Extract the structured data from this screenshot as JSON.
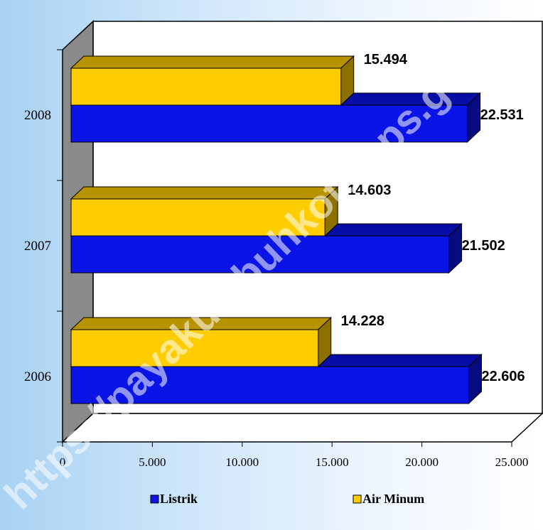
{
  "chart_data": {
    "type": "bar",
    "orientation": "horizontal",
    "three_d": true,
    "categories": [
      "2008",
      "2007",
      "2006"
    ],
    "series": [
      {
        "name": "Air Minum",
        "color": "#ffcc00",
        "values": [
          15494,
          14603,
          14228
        ],
        "labels": [
          "15.494",
          "14.603",
          "14.228"
        ]
      },
      {
        "name": "Listrik",
        "color": "#0a14e6",
        "values": [
          22531,
          21502,
          22606
        ],
        "labels": [
          "22.531",
          "21.502",
          "22.606"
        ]
      }
    ],
    "xlim": [
      0,
      25000
    ],
    "xticks": [
      0,
      5000,
      10000,
      15000,
      20000,
      25000
    ],
    "xtick_labels": [
      "0",
      "5.000",
      "10.000",
      "15.000",
      "20.000",
      "25.000"
    ],
    "legend": [
      "Listrik",
      "Air Minum"
    ],
    "legend_position": "bottom",
    "watermark": "https://payakumbuhkota.bps.go.id"
  }
}
